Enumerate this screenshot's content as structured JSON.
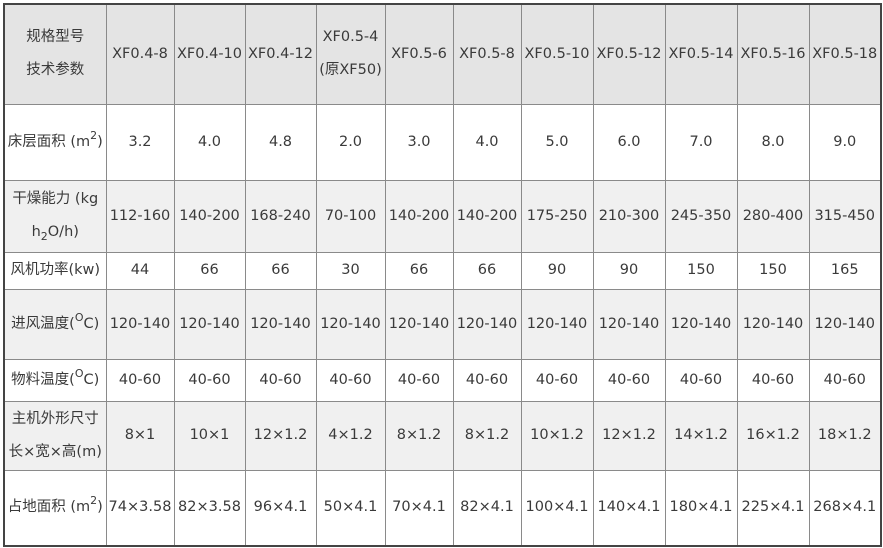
{
  "header": {
    "label_line1": "规格型号",
    "label_line2": "技术参数",
    "models": [
      "XF0.4-8",
      "XF0.4-10",
      "XF0.4-12",
      "XF0.5-4 (原XF50)",
      "XF0.5-6",
      "XF0.5-8",
      "XF0.5-10",
      "XF0.5-12",
      "XF0.5-14",
      "XF0.5-16",
      "XF0.5-18"
    ]
  },
  "rows": [
    {
      "label": {
        "pre": "床层面积 (m",
        "sup": "2",
        "sub": "",
        "post": ")"
      },
      "values": [
        "3.2",
        "4.0",
        "4.8",
        "2.0",
        "3.0",
        "4.0",
        "5.0",
        "6.0",
        "7.0",
        "8.0",
        "9.0"
      ]
    },
    {
      "label": {
        "pre": "干燥能力 (kg h",
        "sup": "",
        "sub": "2",
        "post": "O/h)"
      },
      "values": [
        "112-160",
        "140-200",
        "168-240",
        "70-100",
        "140-200",
        "140-200",
        "175-250",
        "210-300",
        "245-350",
        "280-400",
        "315-450"
      ]
    },
    {
      "label": {
        "pre": "风机功率(kw)",
        "sup": "",
        "sub": "",
        "post": ""
      },
      "values": [
        "44",
        "66",
        "66",
        "30",
        "66",
        "66",
        "90",
        "90",
        "150",
        "150",
        "165"
      ]
    },
    {
      "label": {
        "pre": "进风温度(",
        "sup": "O",
        "sub": "",
        "post": "C)"
      },
      "values": [
        "120-140",
        "120-140",
        "120-140",
        "120-140",
        "120-140",
        "120-140",
        "120-140",
        "120-140",
        "120-140",
        "120-140",
        "120-140"
      ]
    },
    {
      "label": {
        "pre": "物料温度(",
        "sup": "O",
        "sub": "",
        "post": "C)"
      },
      "values": [
        "40-60",
        "40-60",
        "40-60",
        "40-60",
        "40-60",
        "40-60",
        "40-60",
        "40-60",
        "40-60",
        "40-60",
        "40-60"
      ]
    },
    {
      "label": {
        "pre": "主机外形尺寸长×宽×高(m)",
        "sup": "",
        "sub": "",
        "post": ""
      },
      "values": [
        "8×1",
        "10×1",
        "12×1.2",
        "4×1.2",
        "8×1.2",
        "8×1.2",
        "10×1.2",
        "12×1.2",
        "14×1.2",
        "16×1.2",
        "18×1.2"
      ]
    },
    {
      "label": {
        "pre": "占地面积 (m",
        "sup": "2",
        "sub": "",
        "post": ")"
      },
      "values": [
        "74×3.58",
        "82×3.58",
        "96×4.1",
        "50×4.1",
        "70×4.1",
        "82×4.1",
        "100×4.1",
        "140×4.1",
        "180×4.1",
        "225×4.1",
        "268×4.1"
      ]
    }
  ]
}
